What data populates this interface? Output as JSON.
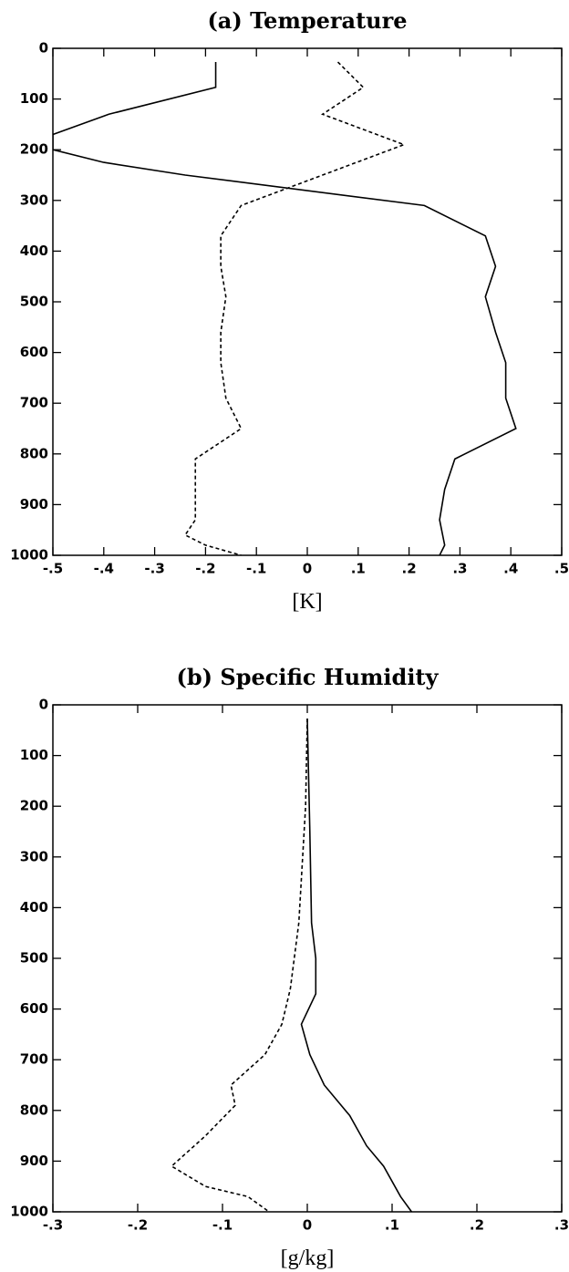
{
  "chart_data": [
    {
      "type": "line",
      "title": "(a) Temperature",
      "x_label": "[K]",
      "xlim": [
        -0.5,
        0.5
      ],
      "ylim": [
        1000,
        0
      ],
      "xticks": [
        {
          "value": -0.5,
          "label": "-.5"
        },
        {
          "value": -0.4,
          "label": "-.4"
        },
        {
          "value": -0.3,
          "label": "-.3"
        },
        {
          "value": -0.2,
          "label": "-.2"
        },
        {
          "value": -0.1,
          "label": "-.1"
        },
        0,
        {
          "value": 0.1,
          "label": ".1"
        },
        {
          "value": 0.2,
          "label": ".2"
        },
        {
          "value": 0.3,
          "label": ".3"
        },
        {
          "value": 0.4,
          "label": ".4"
        },
        {
          "value": 0.5,
          "label": ".5"
        }
      ],
      "yticks": [
        0,
        100,
        200,
        300,
        400,
        500,
        600,
        700,
        800,
        900,
        1000
      ],
      "series": [
        {
          "color": "#000000",
          "dash": "solid",
          "y": [
            27,
            77,
            130,
            170,
            200,
            225,
            250,
            310,
            370,
            430,
            490,
            560,
            620,
            690,
            750,
            810,
            870,
            930,
            980,
            1000
          ],
          "values": [
            -0.18,
            -0.18,
            -0.39,
            -0.5,
            -0.5,
            -0.4,
            -0.24,
            0.23,
            0.35,
            0.37,
            0.35,
            0.37,
            0.39,
            0.39,
            0.41,
            0.29,
            0.27,
            0.26,
            0.27,
            0.26
          ]
        },
        {
          "color": "#000000",
          "dash": "dashed",
          "y": [
            27,
            77,
            130,
            190,
            310,
            370,
            430,
            490,
            560,
            620,
            690,
            750,
            810,
            870,
            930,
            960,
            980,
            1000
          ],
          "values": [
            0.06,
            0.11,
            0.03,
            0.19,
            -0.13,
            -0.17,
            -0.17,
            -0.16,
            -0.17,
            -0.17,
            -0.16,
            -0.13,
            -0.22,
            -0.22,
            -0.22,
            -0.24,
            -0.2,
            -0.13
          ]
        }
      ]
    },
    {
      "type": "line",
      "title": "(b) Specific Humidity",
      "x_label": "[g/kg]",
      "xlim": [
        -0.3,
        0.3
      ],
      "ylim": [
        1000,
        0
      ],
      "xticks": [
        {
          "value": -0.3,
          "label": "-.3"
        },
        {
          "value": -0.2,
          "label": "-.2"
        },
        {
          "value": -0.1,
          "label": "-.1"
        },
        0,
        {
          "value": 0.1,
          "label": ".1"
        },
        {
          "value": 0.2,
          "label": ".2"
        },
        {
          "value": 0.3,
          "label": ".3"
        }
      ],
      "yticks": [
        0,
        100,
        200,
        300,
        400,
        500,
        600,
        700,
        800,
        900,
        1000
      ],
      "series": [
        {
          "color": "#000000",
          "dash": "solid",
          "y": [
            27,
            250,
            430,
            500,
            570,
            630,
            690,
            750,
            810,
            870,
            910,
            970,
            1000
          ],
          "values": [
            0,
            0.003,
            0.005,
            0.01,
            0.01,
            -0.007,
            0.003,
            0.02,
            0.05,
            0.07,
            0.09,
            0.11,
            0.123
          ]
        },
        {
          "color": "#000000",
          "dash": "dashed",
          "y": [
            27,
            200,
            430,
            560,
            630,
            690,
            750,
            790,
            850,
            910,
            950,
            970,
            1000
          ],
          "values": [
            0,
            -0.002,
            -0.01,
            -0.02,
            -0.03,
            -0.05,
            -0.09,
            -0.085,
            -0.12,
            -0.16,
            -0.12,
            -0.07,
            -0.045
          ]
        }
      ]
    }
  ]
}
